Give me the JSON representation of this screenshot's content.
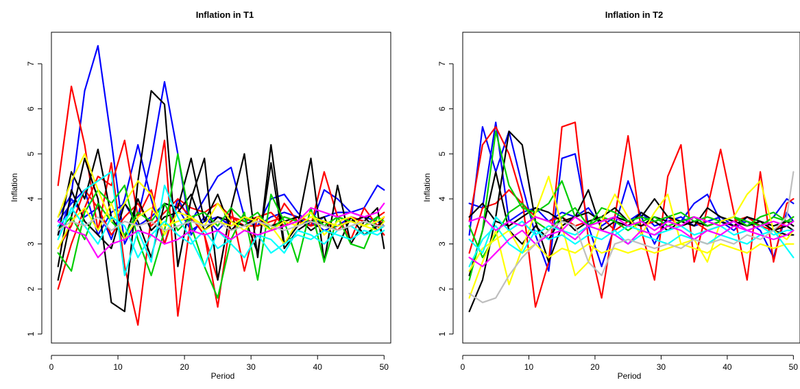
{
  "chart_data": [
    {
      "type": "line",
      "title": "Inflation in T1",
      "xlabel": "Period",
      "ylabel": "Inflation",
      "xlim": [
        0,
        51
      ],
      "ylim": [
        0.8,
        7.7
      ],
      "xticks": [
        0,
        10,
        20,
        30,
        40,
        50
      ],
      "yticks": [
        1,
        2,
        3,
        4,
        5,
        6,
        7
      ],
      "x": [
        1,
        3,
        5,
        7,
        9,
        11,
        13,
        15,
        17,
        19,
        21,
        23,
        25,
        27,
        29,
        31,
        33,
        35,
        37,
        39,
        41,
        43,
        45,
        47,
        49,
        50
      ],
      "series": [
        {
          "color": "#0000ff",
          "values": [
            3.6,
            4.1,
            6.4,
            7.4,
            5.3,
            3.0,
            3.6,
            4.9,
            6.6,
            5.0,
            3.2,
            3.6,
            3.3,
            3.6,
            3.5,
            3.4,
            3.6,
            3.7,
            3.6,
            3.4,
            3.6,
            3.7,
            3.7,
            3.8,
            4.3,
            4.2
          ]
        },
        {
          "color": "#0000ff",
          "values": [
            3.2,
            4.0,
            3.6,
            3.8,
            3.1,
            4.0,
            5.2,
            4.0,
            3.0,
            4.0,
            3.5,
            4.0,
            4.5,
            4.7,
            3.6,
            3.4,
            4.0,
            4.1,
            3.7,
            3.4,
            4.2,
            4.0,
            3.7,
            3.6,
            3.5,
            3.4
          ]
        },
        {
          "color": "#0000ff",
          "values": [
            3.5,
            3.9,
            4.2,
            3.2,
            3.7,
            3.9,
            3.4,
            3.6,
            3.9,
            3.8,
            3.3,
            3.5,
            3.6,
            3.4,
            3.6,
            3.5,
            3.3,
            3.4,
            3.5,
            3.5,
            3.3,
            3.4,
            3.6,
            3.5,
            3.4,
            3.5
          ]
        },
        {
          "color": "#ff0000",
          "values": [
            4.3,
            6.5,
            5.2,
            3.3,
            4.8,
            2.5,
            1.2,
            3.6,
            5.3,
            1.4,
            3.6,
            3.2,
            2.2,
            3.8,
            2.4,
            3.6,
            3.3,
            3.9,
            3.5,
            3.4,
            4.6,
            3.6,
            3.1,
            3.8,
            3.4,
            3.2
          ]
        },
        {
          "color": "#ff0000",
          "values": [
            2.0,
            3.0,
            3.8,
            4.5,
            4.3,
            5.3,
            3.6,
            4.2,
            3.0,
            3.9,
            3.6,
            3.2,
            1.6,
            3.6,
            3.4,
            3.4,
            3.5,
            3.6,
            3.5,
            3.4,
            3.5,
            3.3,
            3.6,
            3.5,
            3.4,
            3.6
          ]
        },
        {
          "color": "#ff0000",
          "values": [
            2.9,
            3.4,
            4.2,
            3.8,
            3.2,
            3.6,
            3.9,
            3.4,
            3.7,
            4.0,
            3.8,
            3.7,
            3.9,
            3.6,
            3.5,
            3.6,
            3.7,
            3.4,
            3.6,
            3.5,
            3.4,
            3.6,
            3.5,
            3.4,
            3.6,
            3.7
          ]
        },
        {
          "color": "#000000",
          "values": [
            2.2,
            3.6,
            4.9,
            4.0,
            1.7,
            1.5,
            4.4,
            6.4,
            6.1,
            2.5,
            4.0,
            4.9,
            2.2,
            3.8,
            5.0,
            2.7,
            5.2,
            3.0,
            3.4,
            4.9,
            2.6,
            4.3,
            3.0,
            3.5,
            3.8,
            2.9
          ]
        },
        {
          "color": "#000000",
          "values": [
            2.5,
            4.2,
            3.5,
            3.2,
            2.9,
            3.9,
            3.5,
            2.7,
            3.9,
            3.8,
            4.9,
            3.5,
            4.1,
            3.3,
            3.6,
            2.8,
            4.8,
            2.9,
            3.3,
            3.5,
            3.6,
            2.9,
            3.6,
            3.2,
            3.4,
            3.5
          ]
        },
        {
          "color": "#000000",
          "values": [
            3.2,
            4.6,
            4.0,
            5.1,
            3.6,
            3.1,
            4.0,
            3.3,
            3.6,
            3.7,
            4.1,
            3.3,
            3.6,
            3.5,
            3.4,
            3.6,
            3.4,
            3.5,
            3.6,
            3.3,
            3.5,
            3.4,
            3.5,
            3.6,
            3.3,
            3.4
          ]
        },
        {
          "color": "#00cd00",
          "values": [
            2.8,
            2.4,
            3.7,
            4.2,
            3.9,
            4.3,
            3.1,
            2.3,
            3.3,
            5.0,
            3.4,
            2.5,
            1.8,
            3.1,
            3.7,
            2.2,
            4.1,
            3.5,
            2.6,
            3.8,
            2.6,
            3.6,
            3.0,
            2.9,
            3.6,
            3.5
          ]
        },
        {
          "color": "#00cd00",
          "values": [
            3.3,
            3.6,
            3.1,
            3.9,
            3.5,
            3.2,
            3.7,
            3.5,
            3.9,
            3.3,
            3.6,
            3.7,
            3.4,
            3.8,
            3.5,
            3.7,
            3.3,
            3.6,
            3.5,
            3.7,
            3.4,
            3.6,
            3.5,
            3.4,
            3.6,
            3.5
          ]
        },
        {
          "color": "#ffff00",
          "values": [
            3.6,
            4.4,
            5.0,
            4.2,
            3.5,
            3.9,
            4.4,
            4.1,
            3.2,
            3.7,
            3.6,
            3.4,
            3.9,
            3.5,
            3.3,
            3.6,
            3.4,
            3.0,
            3.5,
            3.7,
            3.2,
            3.5,
            3.6,
            3.4,
            3.3,
            3.5
          ]
        },
        {
          "color": "#ffff00",
          "values": [
            2.9,
            3.5,
            3.8,
            3.3,
            3.9,
            3.1,
            3.6,
            3.8,
            3.4,
            3.5,
            3.6,
            3.3,
            3.5,
            3.4,
            3.6,
            3.5,
            3.3,
            3.5,
            3.4,
            3.6,
            3.5,
            3.4,
            3.5,
            3.4,
            3.5,
            3.6
          ]
        },
        {
          "color": "#00ffff",
          "values": [
            3.4,
            3.7,
            4.2,
            4.4,
            4.6,
            2.3,
            3.3,
            2.6,
            4.3,
            3.6,
            3.1,
            2.5,
            3.3,
            3.0,
            2.7,
            3.2,
            3.1,
            2.8,
            3.3,
            3.2,
            3.0,
            3.3,
            3.4,
            3.2,
            3.3,
            3.4
          ]
        },
        {
          "color": "#00ffff",
          "values": [
            3.1,
            3.8,
            3.4,
            3.0,
            3.6,
            3.4,
            2.7,
            3.2,
            3.5,
            3.2,
            3.0,
            3.3,
            2.9,
            3.1,
            3.3,
            3.2,
            2.8,
            3.0,
            3.2,
            3.1,
            3.3,
            3.2,
            3.1,
            3.3,
            3.2,
            3.3
          ]
        },
        {
          "color": "#ff00ff",
          "values": [
            3.5,
            3.3,
            3.2,
            2.7,
            3.0,
            3.1,
            3.3,
            3.2,
            3.0,
            3.1,
            3.3,
            3.2,
            3.3,
            3.1,
            3.3,
            3.2,
            3.3,
            3.4,
            3.5,
            3.8,
            3.7,
            3.6,
            3.7,
            3.6,
            3.7,
            3.9
          ]
        },
        {
          "color": "#bebebe",
          "values": [
            3.3,
            3.5,
            3.4,
            3.6,
            3.3,
            3.5,
            3.4,
            3.5,
            3.3,
            3.4,
            3.5,
            3.4,
            3.5,
            3.3,
            3.4,
            3.5,
            3.4,
            3.3,
            3.4,
            3.5,
            3.4,
            3.3,
            3.4,
            3.5,
            3.4,
            3.4
          ]
        }
      ]
    },
    {
      "type": "line",
      "title": "Inflation in T2",
      "xlabel": "Period",
      "ylabel": "Inflation",
      "xlim": [
        0,
        51
      ],
      "ylim": [
        0.8,
        7.7
      ],
      "xticks": [
        0,
        10,
        20,
        30,
        40,
        50
      ],
      "yticks": [
        1,
        2,
        3,
        4,
        5,
        6,
        7
      ],
      "x": [
        1,
        3,
        5,
        7,
        9,
        11,
        13,
        15,
        17,
        19,
        21,
        23,
        25,
        27,
        29,
        31,
        33,
        35,
        37,
        39,
        41,
        43,
        45,
        47,
        49,
        50
      ],
      "series": [
        {
          "color": "#0000ff",
          "values": [
            3.2,
            5.6,
            4.6,
            5.5,
            4.3,
            3.2,
            2.4,
            4.9,
            5.0,
            3.4,
            2.5,
            3.4,
            4.4,
            3.6,
            3.0,
            3.6,
            3.5,
            3.9,
            4.1,
            3.5,
            3.3,
            3.6,
            3.4,
            3.6,
            4.0,
            3.9
          ]
        },
        {
          "color": "#0000ff",
          "values": [
            3.9,
            3.8,
            5.7,
            3.5,
            3.7,
            3.8,
            3.5,
            3.7,
            3.6,
            3.8,
            3.4,
            3.6,
            3.5,
            3.7,
            3.4,
            3.5,
            3.6,
            3.4,
            3.5,
            3.6,
            3.4,
            3.5,
            3.3,
            2.7,
            3.7,
            3.5
          ]
        },
        {
          "color": "#ff0000",
          "values": [
            3.5,
            5.2,
            5.6,
            5.0,
            4.0,
            1.6,
            2.6,
            5.6,
            5.7,
            3.1,
            1.8,
            3.6,
            5.4,
            3.3,
            2.2,
            4.5,
            5.2,
            2.6,
            3.8,
            5.1,
            3.7,
            2.2,
            4.6,
            2.6,
            3.9,
            4.0
          ]
        },
        {
          "color": "#ff0000",
          "values": [
            2.8,
            3.8,
            3.9,
            4.2,
            3.9,
            3.6,
            3.5,
            3.6,
            3.4,
            3.5,
            3.6,
            3.3,
            3.5,
            3.4,
            3.5,
            3.6,
            3.4,
            3.5,
            3.3,
            3.4,
            3.5,
            3.6,
            3.4,
            3.3,
            3.5,
            3.6
          ]
        },
        {
          "color": "#000000",
          "values": [
            1.5,
            2.2,
            3.6,
            5.5,
            5.2,
            3.5,
            2.6,
            3.4,
            3.6,
            4.2,
            3.3,
            3.5,
            3.4,
            3.7,
            3.5,
            3.3,
            3.5,
            3.6,
            3.4,
            3.5,
            3.6,
            3.4,
            3.5,
            3.3,
            3.4,
            3.3
          ]
        },
        {
          "color": "#000000",
          "values": [
            2.3,
            3.3,
            4.6,
            3.3,
            3.0,
            3.4,
            3.1,
            3.6,
            3.3,
            3.5,
            3.6,
            3.8,
            3.5,
            3.6,
            4.0,
            3.6,
            3.5,
            3.4,
            3.8,
            3.6,
            3.5,
            3.4,
            3.5,
            3.3,
            3.2,
            3.2
          ]
        },
        {
          "color": "#000000",
          "values": [
            3.6,
            3.9,
            3.5,
            3.4,
            3.6,
            3.8,
            3.7,
            3.5,
            3.6,
            3.7,
            3.5,
            3.6,
            3.5,
            3.4,
            3.6,
            3.5,
            3.4,
            3.5,
            3.4,
            3.5,
            3.4,
            3.6,
            3.5,
            3.4,
            3.5,
            3.4
          ]
        },
        {
          "color": "#00cd00",
          "values": [
            2.2,
            3.3,
            5.5,
            4.3,
            3.8,
            3.7,
            3.9,
            4.4,
            3.6,
            3.4,
            3.8,
            3.7,
            3.5,
            3.6,
            3.5,
            3.6,
            3.7,
            3.5,
            3.6,
            3.5,
            3.6,
            3.4,
            3.6,
            3.7,
            3.5,
            3.6
          ]
        },
        {
          "color": "#00cd00",
          "values": [
            3.4,
            2.7,
            3.2,
            3.7,
            3.9,
            3.5,
            3.3,
            3.6,
            3.8,
            3.4,
            3.6,
            3.5,
            3.3,
            3.5,
            3.6,
            3.4,
            3.5,
            3.6,
            3.4,
            3.5,
            3.6,
            3.5,
            3.4,
            3.6,
            3.5,
            3.5
          ]
        },
        {
          "color": "#ffff00",
          "values": [
            1.8,
            2.6,
            3.3,
            2.1,
            2.9,
            3.7,
            4.5,
            3.4,
            2.3,
            2.6,
            3.5,
            4.1,
            3.6,
            3.2,
            3.7,
            4.1,
            3.0,
            3.1,
            2.6,
            3.5,
            3.6,
            4.1,
            4.4,
            3.3,
            3.1,
            3.3
          ]
        },
        {
          "color": "#ffff00",
          "values": [
            2.4,
            2.9,
            3.1,
            3.3,
            2.8,
            3.0,
            2.7,
            2.9,
            2.8,
            3.0,
            2.8,
            2.9,
            2.8,
            2.9,
            2.8,
            2.9,
            3.0,
            2.9,
            2.8,
            3.0,
            2.9,
            2.8,
            3.0,
            2.9,
            3.0,
            3.0
          ]
        },
        {
          "color": "#00ffff",
          "values": [
            2.5,
            3.1,
            3.4,
            3.0,
            2.8,
            3.3,
            3.1,
            3.2,
            3.0,
            3.2,
            3.1,
            3.3,
            3.0,
            3.2,
            3.1,
            3.0,
            3.2,
            3.1,
            3.0,
            3.2,
            3.1,
            3.0,
            3.2,
            3.3,
            2.9,
            2.7
          ]
        },
        {
          "color": "#00ffff",
          "values": [
            3.1,
            2.8,
            3.6,
            3.3,
            3.5,
            3.2,
            3.4,
            3.3,
            3.2,
            3.4,
            3.3,
            3.2,
            3.4,
            3.3,
            3.2,
            3.3,
            3.4,
            3.2,
            3.3,
            3.4,
            3.2,
            3.3,
            3.4,
            3.2,
            3.3,
            3.3
          ]
        },
        {
          "color": "#ff00ff",
          "values": [
            2.7,
            2.5,
            2.8,
            3.1,
            3.3,
            3.0,
            3.2,
            3.3,
            3.1,
            3.4,
            3.3,
            3.2,
            3.0,
            3.3,
            3.2,
            3.4,
            3.3,
            3.1,
            3.3,
            3.2,
            3.4,
            3.3,
            3.2,
            3.1,
            3.2,
            3.3
          ]
        },
        {
          "color": "#ff00ff",
          "values": [
            3.5,
            3.6,
            3.3,
            3.5,
            3.4,
            3.6,
            3.5,
            3.3,
            3.6,
            3.4,
            3.5,
            3.6,
            3.4,
            3.5,
            3.3,
            3.5,
            3.4,
            3.6,
            3.5,
            3.4,
            3.5,
            3.3,
            3.4,
            3.5,
            3.4,
            3.5
          ]
        },
        {
          "color": "#bebebe",
          "values": [
            1.9,
            1.7,
            1.8,
            2.3,
            2.7,
            3.0,
            3.3,
            3.5,
            3.4,
            2.6,
            2.3,
            3.0,
            3.1,
            3.0,
            2.9,
            3.0,
            2.9,
            3.1,
            3.0,
            3.1,
            3.0,
            3.2,
            3.1,
            3.3,
            3.6,
            4.6
          ]
        }
      ]
    }
  ]
}
